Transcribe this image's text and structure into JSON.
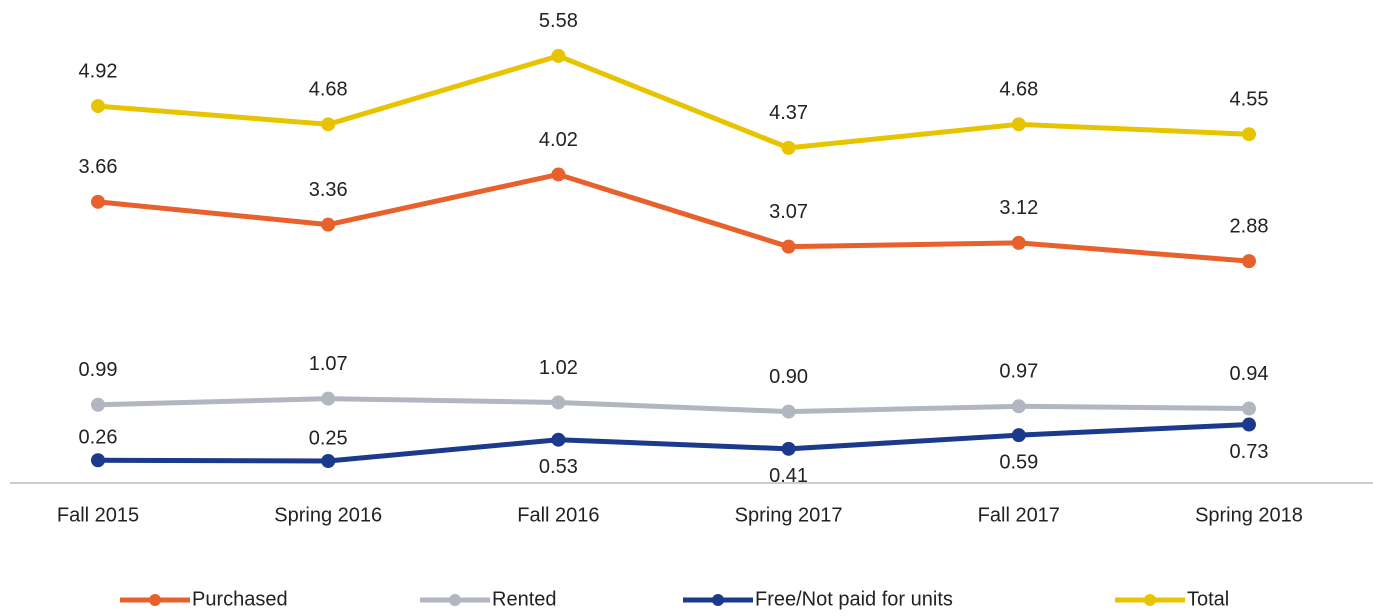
{
  "chart_data": {
    "type": "line",
    "categories": [
      "Fall 2015",
      "Spring 2016",
      "Fall 2016",
      "Spring 2017",
      "Fall 2017",
      "Spring 2018"
    ],
    "ylim": [
      0,
      6
    ],
    "legend": "bottom",
    "series": [
      {
        "name": "Purchased",
        "color": "#e8602c",
        "values": [
          3.66,
          3.36,
          4.02,
          3.07,
          3.12,
          2.88
        ],
        "value_labels": [
          "3.66",
          "3.36",
          "4.02",
          "3.07",
          "3.12",
          "2.88"
        ]
      },
      {
        "name": "Rented",
        "color": "#b2b6c1",
        "values": [
          0.99,
          1.07,
          1.02,
          0.9,
          0.97,
          0.94
        ],
        "value_labels": [
          "0.99",
          "1.07",
          "1.02",
          "0.90",
          "0.97",
          "0.94"
        ]
      },
      {
        "name": "Free/Not paid for units",
        "color": "#1b3a8c",
        "values": [
          0.26,
          0.25,
          0.53,
          0.41,
          0.59,
          0.73
        ],
        "value_labels": [
          "0.26",
          "0.25",
          "0.53",
          "0.41",
          "0.59",
          "0.73"
        ]
      },
      {
        "name": "Total",
        "color": "#e8c400",
        "values": [
          4.92,
          4.68,
          5.58,
          4.37,
          4.68,
          4.55
        ],
        "value_labels": [
          "4.92",
          "4.68",
          "5.58",
          "4.37",
          "4.68",
          "4.55"
        ]
      }
    ]
  }
}
